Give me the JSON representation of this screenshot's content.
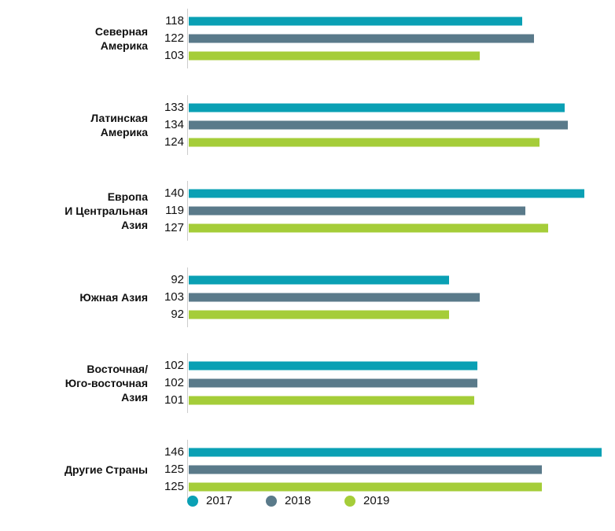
{
  "chart_data": {
    "type": "bar",
    "orientation": "horizontal",
    "categories": [
      "Северная\nАмерика",
      "Латинская\nАмерика",
      "Европа\nИ Центральная\nАзия",
      "Южная Азия",
      "Восточная/\nЮго-восточная\nАзия",
      "Другие Страны"
    ],
    "series": [
      {
        "name": "2017",
        "color": "#0aa0b4",
        "values": [
          118,
          133,
          140,
          92,
          102,
          146
        ]
      },
      {
        "name": "2018",
        "color": "#5a7a8a",
        "values": [
          122,
          134,
          119,
          103,
          102,
          125
        ]
      },
      {
        "name": "2019",
        "color": "#a5cd39",
        "values": [
          103,
          124,
          127,
          92,
          101,
          125
        ]
      }
    ]
  }
}
